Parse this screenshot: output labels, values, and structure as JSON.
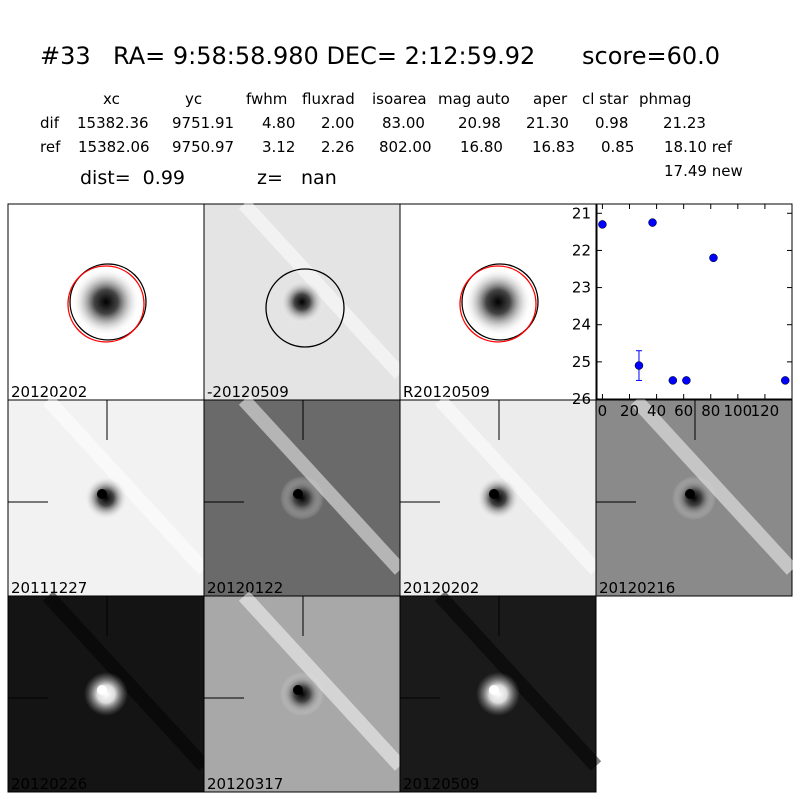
{
  "header": {
    "id": "#33",
    "coords": "RA= 9:58:58.980 DEC= 2:12:59.92",
    "score": "score=60.0"
  },
  "table": {
    "columns": [
      "xc",
      "yc",
      "fwhm",
      "fluxrad",
      "isoarea",
      "mag auto",
      "aper",
      "cl star",
      "phmag"
    ],
    "rows": [
      [
        "dif",
        "15382.36",
        "9751.91",
        "4.80",
        "2.00",
        "83.00",
        "20.98",
        "21.30",
        "0.98",
        "21.23"
      ],
      [
        "ref",
        "15382.06",
        "9750.97",
        "3.12",
        "2.26",
        "802.00",
        "16.80",
        "16.83",
        "0.85",
        "18.10 ref"
      ]
    ],
    "extra": "17.49 new"
  },
  "dist": "dist=  0.99",
  "z": "z=   nan",
  "panels": [
    {
      "label": "20120202"
    },
    {
      "label": "-20120509"
    },
    {
      "label": "R20120509"
    },
    {
      "label": "20111227"
    },
    {
      "label": "20120122"
    },
    {
      "label": "20120202",
      "label_color": "#ff0000"
    },
    {
      "label": "20120216"
    },
    {
      "label": "20120226"
    },
    {
      "label": "20120317"
    },
    {
      "label": "20120509"
    }
  ],
  "chart_data": {
    "type": "scatter",
    "color": "#0000ff",
    "x": [
      0,
      27,
      37,
      52,
      62,
      82,
      135
    ],
    "y": [
      21.3,
      25.1,
      21.25,
      25.5,
      25.5,
      22.2,
      25.5
    ],
    "errors": [
      null,
      0.4,
      null,
      null,
      null,
      null,
      null
    ],
    "xlim": [
      -4,
      140
    ],
    "ylim": [
      26,
      20.75
    ],
    "xticks": [
      0,
      20,
      40,
      60,
      80,
      100,
      120
    ],
    "yticks": [
      21,
      22,
      23,
      24,
      25,
      26
    ]
  }
}
